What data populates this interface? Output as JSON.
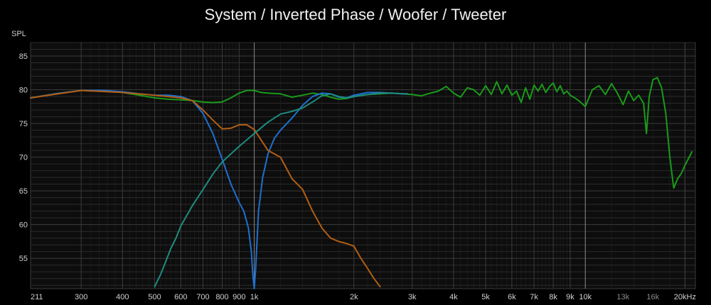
{
  "chart_data": {
    "type": "line",
    "title": "System / Inverted Phase / Woofer / Tweeter",
    "ylabel": "SPL",
    "xlabel": "",
    "x_scale": "log",
    "xlim": [
      211,
      21500
    ],
    "ylim": [
      50.5,
      87
    ],
    "yticks": [
      55,
      60,
      65,
      70,
      75,
      80,
      85
    ],
    "yticks_labels": [
      "55",
      "60",
      "65",
      "70",
      "75",
      "80",
      "85"
    ],
    "xticks": [
      {
        "value": 211,
        "label": "211",
        "style": "major"
      },
      {
        "value": 300,
        "label": "300",
        "style": "major"
      },
      {
        "value": 400,
        "label": "400",
        "style": "major"
      },
      {
        "value": 500,
        "label": "500",
        "style": "major"
      },
      {
        "value": 600,
        "label": "600",
        "style": "major"
      },
      {
        "value": 700,
        "label": "700",
        "style": "major"
      },
      {
        "value": 800,
        "label": "800",
        "style": "major"
      },
      {
        "value": 900,
        "label": "900",
        "style": "major"
      },
      {
        "value": 1000,
        "label": "1k",
        "style": "major"
      },
      {
        "value": 2000,
        "label": "2k",
        "style": "major"
      },
      {
        "value": 3000,
        "label": "3k",
        "style": "major"
      },
      {
        "value": 4000,
        "label": "4k",
        "style": "major"
      },
      {
        "value": 5000,
        "label": "5k",
        "style": "major"
      },
      {
        "value": 6000,
        "label": "6k",
        "style": "major"
      },
      {
        "value": 7000,
        "label": "7k",
        "style": "major"
      },
      {
        "value": 8000,
        "label": "8k",
        "style": "major"
      },
      {
        "value": 9000,
        "label": "9k",
        "style": "major"
      },
      {
        "value": 10000,
        "label": "10k",
        "style": "major"
      },
      {
        "value": 13000,
        "label": "13k",
        "style": "minor"
      },
      {
        "value": 16000,
        "label": "16k",
        "style": "minor"
      },
      {
        "value": 20000,
        "label": "20kHz",
        "style": "major"
      }
    ],
    "grid": true,
    "colors": {
      "background": "#000000",
      "plot_bg": "#0d0d0d",
      "grid": "#2b2b2b",
      "grid_major": "#3c3c3c",
      "emphasis_line": "#8a8a8a"
    },
    "series": [
      {
        "color": "#1a9a1a",
        "x": [
          211,
          250,
          300,
          350,
          400,
          450,
          500,
          550,
          600,
          650,
          700,
          750,
          800,
          850,
          900,
          950,
          1000,
          1050,
          1100,
          1200,
          1300,
          1400,
          1500,
          1600,
          1700,
          1800,
          1900,
          2000,
          2200,
          2400,
          2600,
          2800,
          3000,
          3200,
          3400,
          3600,
          3800,
          4000,
          4200,
          4400,
          4600,
          4800,
          5000,
          5200,
          5400,
          5600,
          5800,
          6000,
          6200,
          6400,
          6600,
          6800,
          7000,
          7200,
          7400,
          7600,
          7800,
          8000,
          8200,
          8400,
          8600,
          8800,
          9000,
          9300,
          9600,
          10000,
          10500,
          11000,
          11500,
          12000,
          12500,
          13000,
          13500,
          14000,
          14500,
          15000,
          15300,
          15600,
          16000,
          16500,
          17000,
          17500,
          18000,
          18500,
          19000,
          19500,
          20000,
          21000
        ],
        "y": [
          78.8,
          79.4,
          79.9,
          79.9,
          79.6,
          79.2,
          78.8,
          78.6,
          78.5,
          78.4,
          78.2,
          78.1,
          78.2,
          78.8,
          79.5,
          79.9,
          79.9,
          79.6,
          79.5,
          79.4,
          78.9,
          79.2,
          79.5,
          79.3,
          78.9,
          78.6,
          78.7,
          79.0,
          79.3,
          79.4,
          79.5,
          79.4,
          79.3,
          79.1,
          79.5,
          79.8,
          80.5,
          79.5,
          78.9,
          80.3,
          80.0,
          79.2,
          80.6,
          79.3,
          81.2,
          79.4,
          80.7,
          79.2,
          79.8,
          78.1,
          80.3,
          78.6,
          80.7,
          79.8,
          80.8,
          79.6,
          80.5,
          81.0,
          79.7,
          80.6,
          79.4,
          79.8,
          79.2,
          78.8,
          78.3,
          77.5,
          80.0,
          80.6,
          79.3,
          80.9,
          79.5,
          77.8,
          79.8,
          78.4,
          79.2,
          78.0,
          73.5,
          79.0,
          81.5,
          81.8,
          80.3,
          76.5,
          70.0,
          65.4,
          66.8,
          67.6,
          68.8,
          70.8
        ]
      },
      {
        "color": "#1f6fcf",
        "x": [
          211,
          250,
          300,
          350,
          400,
          450,
          500,
          550,
          600,
          650,
          700,
          750,
          800,
          850,
          900,
          930,
          960,
          980,
          990,
          1000,
          1010,
          1030,
          1060,
          1100,
          1150,
          1200,
          1300,
          1400,
          1500,
          1600,
          1700,
          1800,
          1900,
          2000,
          2200,
          2400,
          2600,
          2800,
          2900
        ],
        "y": [
          78.8,
          79.4,
          79.9,
          79.9,
          79.7,
          79.4,
          79.2,
          79.2,
          79.0,
          78.4,
          76.5,
          73.5,
          69.7,
          66.0,
          63.3,
          62.0,
          59.5,
          56.0,
          52.5,
          50.5,
          53.5,
          62.0,
          67.0,
          70.5,
          72.8,
          74.0,
          75.8,
          77.7,
          79.0,
          79.5,
          79.4,
          78.9,
          78.8,
          79.2,
          79.6,
          79.6,
          79.5,
          79.4,
          79.4
        ]
      },
      {
        "color": "#b25e14",
        "x": [
          211,
          300,
          400,
          500,
          600,
          650,
          700,
          750,
          800,
          850,
          900,
          950,
          1000,
          1050,
          1100,
          1200,
          1300,
          1400,
          1500,
          1600,
          1700,
          1800,
          1900,
          2000,
          2100,
          2200,
          2300,
          2400
        ],
        "y": [
          78.8,
          79.9,
          79.6,
          79.2,
          78.8,
          78.4,
          77.0,
          75.5,
          74.2,
          74.3,
          74.8,
          74.8,
          74.1,
          72.5,
          71.0,
          70.0,
          66.8,
          65.2,
          62.0,
          59.5,
          58.0,
          57.5,
          57.2,
          56.8,
          55.0,
          53.5,
          52.0,
          50.8
        ]
      },
      {
        "color": "#1e8c80",
        "x": [
          500,
          520,
          540,
          560,
          580,
          600,
          650,
          700,
          750,
          800,
          900,
          1000,
          1100,
          1200,
          1300,
          1400,
          1500,
          1600,
          1700,
          1800,
          1900,
          2000,
          2200,
          2400,
          2600,
          2800,
          2900
        ],
        "y": [
          50.8,
          52.5,
          54.5,
          56.5,
          58.0,
          59.8,
          62.8,
          65.2,
          67.5,
          69.3,
          71.6,
          73.5,
          75.2,
          76.4,
          76.8,
          77.3,
          78.2,
          79.1,
          79.4,
          79.0,
          78.8,
          79.0,
          79.3,
          79.5,
          79.5,
          79.4,
          79.4
        ]
      }
    ]
  }
}
